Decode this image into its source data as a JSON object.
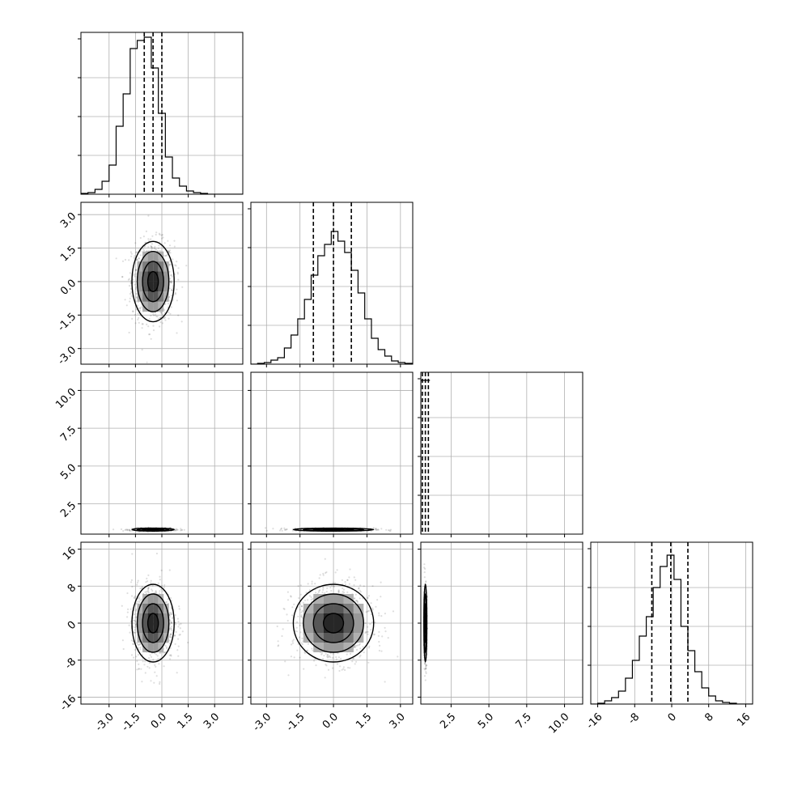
{
  "chart_data": {
    "type": "corner",
    "parameters": 4,
    "ticks": [
      [
        "-3.0",
        "-1.5",
        "0.0",
        "1.5",
        "3.0"
      ],
      [
        "-3.0",
        "-1.5",
        "0.0",
        "1.5",
        "3.0"
      ],
      [
        "2.5",
        "5.0",
        "7.5",
        "10.0"
      ],
      [
        "-16",
        "-8",
        "0",
        "8",
        "16"
      ]
    ],
    "tick_values": [
      [
        -3.0,
        -1.5,
        0.0,
        1.5,
        3.0
      ],
      [
        -3.0,
        -1.5,
        0.0,
        1.5,
        3.0
      ],
      [
        2.5,
        5.0,
        7.5,
        10.0
      ],
      [
        -16,
        -8,
        0,
        8,
        16
      ]
    ],
    "ranges": [
      [
        -4.6,
        4.6
      ],
      [
        -3.7,
        3.55
      ],
      [
        0.5,
        11.2
      ],
      [
        -17.5,
        17.5
      ]
    ],
    "quantiles": [
      [
        -1.0,
        -0.5,
        0.0
      ],
      [
        -0.9,
        0.0,
        0.8
      ],
      [
        0.6,
        0.8,
        1.0
      ],
      [
        -4.3,
        -0.2,
        3.5
      ]
    ],
    "histograms": [
      {
        "bins": [
          -4.6,
          -4.2,
          -3.8,
          -3.4,
          -3.0,
          -2.6,
          -2.2,
          -1.8,
          -1.4,
          -1.0,
          -0.6,
          -0.2,
          0.2,
          0.6,
          1.0,
          1.4,
          1.8,
          2.2,
          2.6,
          3.0,
          3.4,
          3.8,
          4.2,
          4.6
        ],
        "counts": [
          0.005,
          0.01,
          0.03,
          0.08,
          0.18,
          0.42,
          0.62,
          0.9,
          0.95,
          0.97,
          0.78,
          0.5,
          0.23,
          0.1,
          0.05,
          0.02,
          0.01,
          0.005,
          0,
          0,
          0,
          0,
          0
        ]
      },
      {
        "bins": [
          -3.7,
          -3.4,
          -3.1,
          -2.8,
          -2.5,
          -2.2,
          -1.9,
          -1.6,
          -1.3,
          -1.0,
          -0.7,
          -0.4,
          -0.1,
          0.2,
          0.5,
          0.8,
          1.1,
          1.4,
          1.7,
          2.0,
          2.3,
          2.6,
          2.9,
          3.2,
          3.55
        ],
        "counts": [
          0,
          0.005,
          0.01,
          0.025,
          0.04,
          0.1,
          0.18,
          0.28,
          0.4,
          0.55,
          0.67,
          0.74,
          0.82,
          0.76,
          0.69,
          0.58,
          0.44,
          0.28,
          0.16,
          0.09,
          0.05,
          0.02,
          0.01,
          0.005
        ]
      },
      {
        "bins": [
          0.5,
          0.7,
          0.9,
          1.1
        ],
        "counts": [
          0.95,
          0.95,
          0.95
        ]
      },
      {
        "bins": [
          -17.5,
          -16.0,
          -14.5,
          -13.0,
          -11.5,
          -10.0,
          -8.5,
          -7.0,
          -5.5,
          -4.0,
          -2.5,
          -1.0,
          0.5,
          2.0,
          3.5,
          5.0,
          6.5,
          8.0,
          9.5,
          11.0,
          12.5,
          14.0,
          15.5,
          17.5
        ],
        "counts": [
          0,
          0.005,
          0.02,
          0.04,
          0.08,
          0.16,
          0.27,
          0.42,
          0.54,
          0.72,
          0.85,
          0.92,
          0.77,
          0.48,
          0.33,
          0.2,
          0.1,
          0.05,
          0.02,
          0.01,
          0.005,
          0,
          0
        ]
      }
    ],
    "pairs": [
      {
        "row": 1,
        "col": 0,
        "mean": [
          -0.5,
          0.0
        ],
        "std": [
          0.6,
          0.9
        ],
        "kind": "blob"
      },
      {
        "row": 2,
        "col": 0,
        "mean": [
          -0.5,
          0.8
        ],
        "std": [
          0.6,
          0.05
        ],
        "kind": "flat"
      },
      {
        "row": 2,
        "col": 1,
        "mean": [
          0.0,
          0.8
        ],
        "std": [
          0.9,
          0.05
        ],
        "kind": "flat"
      },
      {
        "row": 3,
        "col": 0,
        "mean": [
          -0.5,
          0.0
        ],
        "std": [
          0.6,
          4.2
        ],
        "kind": "blob"
      },
      {
        "row": 3,
        "col": 1,
        "mean": [
          0.0,
          0.0
        ],
        "std": [
          0.9,
          4.2
        ],
        "kind": "blob"
      },
      {
        "row": 3,
        "col": 2,
        "mean": [
          0.8,
          0.0
        ],
        "std": [
          0.05,
          4.2
        ],
        "kind": "strip"
      }
    ],
    "grid": true,
    "legend": "none"
  }
}
